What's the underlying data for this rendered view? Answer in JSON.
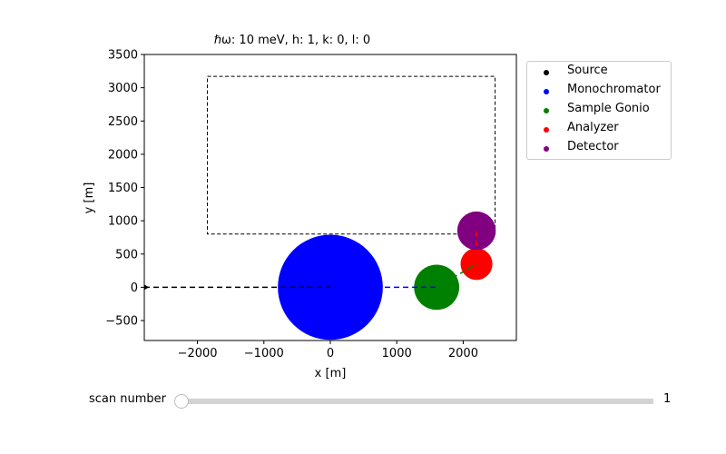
{
  "chart_data": {
    "type": "scatter",
    "title": "ℏω: 10 meV, h: 1, k: 0, l: 0",
    "xlabel": "x [m]",
    "ylabel": "y [m]",
    "xlim": [
      -2800,
      2800
    ],
    "ylim": [
      -800,
      3500
    ],
    "xticks": [
      -2000,
      -1000,
      0,
      1000,
      2000
    ],
    "yticks": [
      -500,
      0,
      500,
      1000,
      1500,
      2000,
      2500,
      3000,
      3500
    ],
    "xtick_labels": [
      "−2000",
      "−1000",
      "0",
      "1000",
      "2000"
    ],
    "ytick_labels": [
      "−500",
      "0",
      "500",
      "1000",
      "1500",
      "2000",
      "2500",
      "3000",
      "3500"
    ],
    "grid": false,
    "legend_position": "outside-upper-right",
    "series": [
      {
        "name": "Source",
        "color": "#000000",
        "x": -2800,
        "y": 0,
        "radius": 20
      },
      {
        "name": "Monochromator",
        "color": "#0000ff",
        "x": 0,
        "y": 0,
        "radius": 790
      },
      {
        "name": "Sample Gonio",
        "color": "#008000",
        "x": 1600,
        "y": 0,
        "radius": 340
      },
      {
        "name": "Analyzer",
        "color": "#ff0000",
        "x": 2200,
        "y": 350,
        "radius": 240
      },
      {
        "name": "Detector",
        "color": "#800080",
        "x": 2200,
        "y": 850,
        "radius": 290
      }
    ],
    "beam_path": [
      {
        "color": "#000000",
        "from": [
          -2800,
          0
        ],
        "to": [
          0,
          0
        ]
      },
      {
        "color": "#0000ff",
        "from": [
          0,
          0
        ],
        "to": [
          1600,
          0
        ]
      },
      {
        "color": "#008000",
        "from": [
          1600,
          0
        ],
        "to": [
          2200,
          350
        ]
      },
      {
        "color": "#ff0000",
        "from": [
          2200,
          350
        ],
        "to": [
          2200,
          850
        ]
      }
    ],
    "boundary_rect": {
      "x0": -1850,
      "x1": 2480,
      "y0": 800,
      "y1": 3170,
      "color": "#000000",
      "style": "dashed"
    }
  },
  "slider": {
    "label": "scan number",
    "value": "1",
    "position_fraction": 0.0
  }
}
